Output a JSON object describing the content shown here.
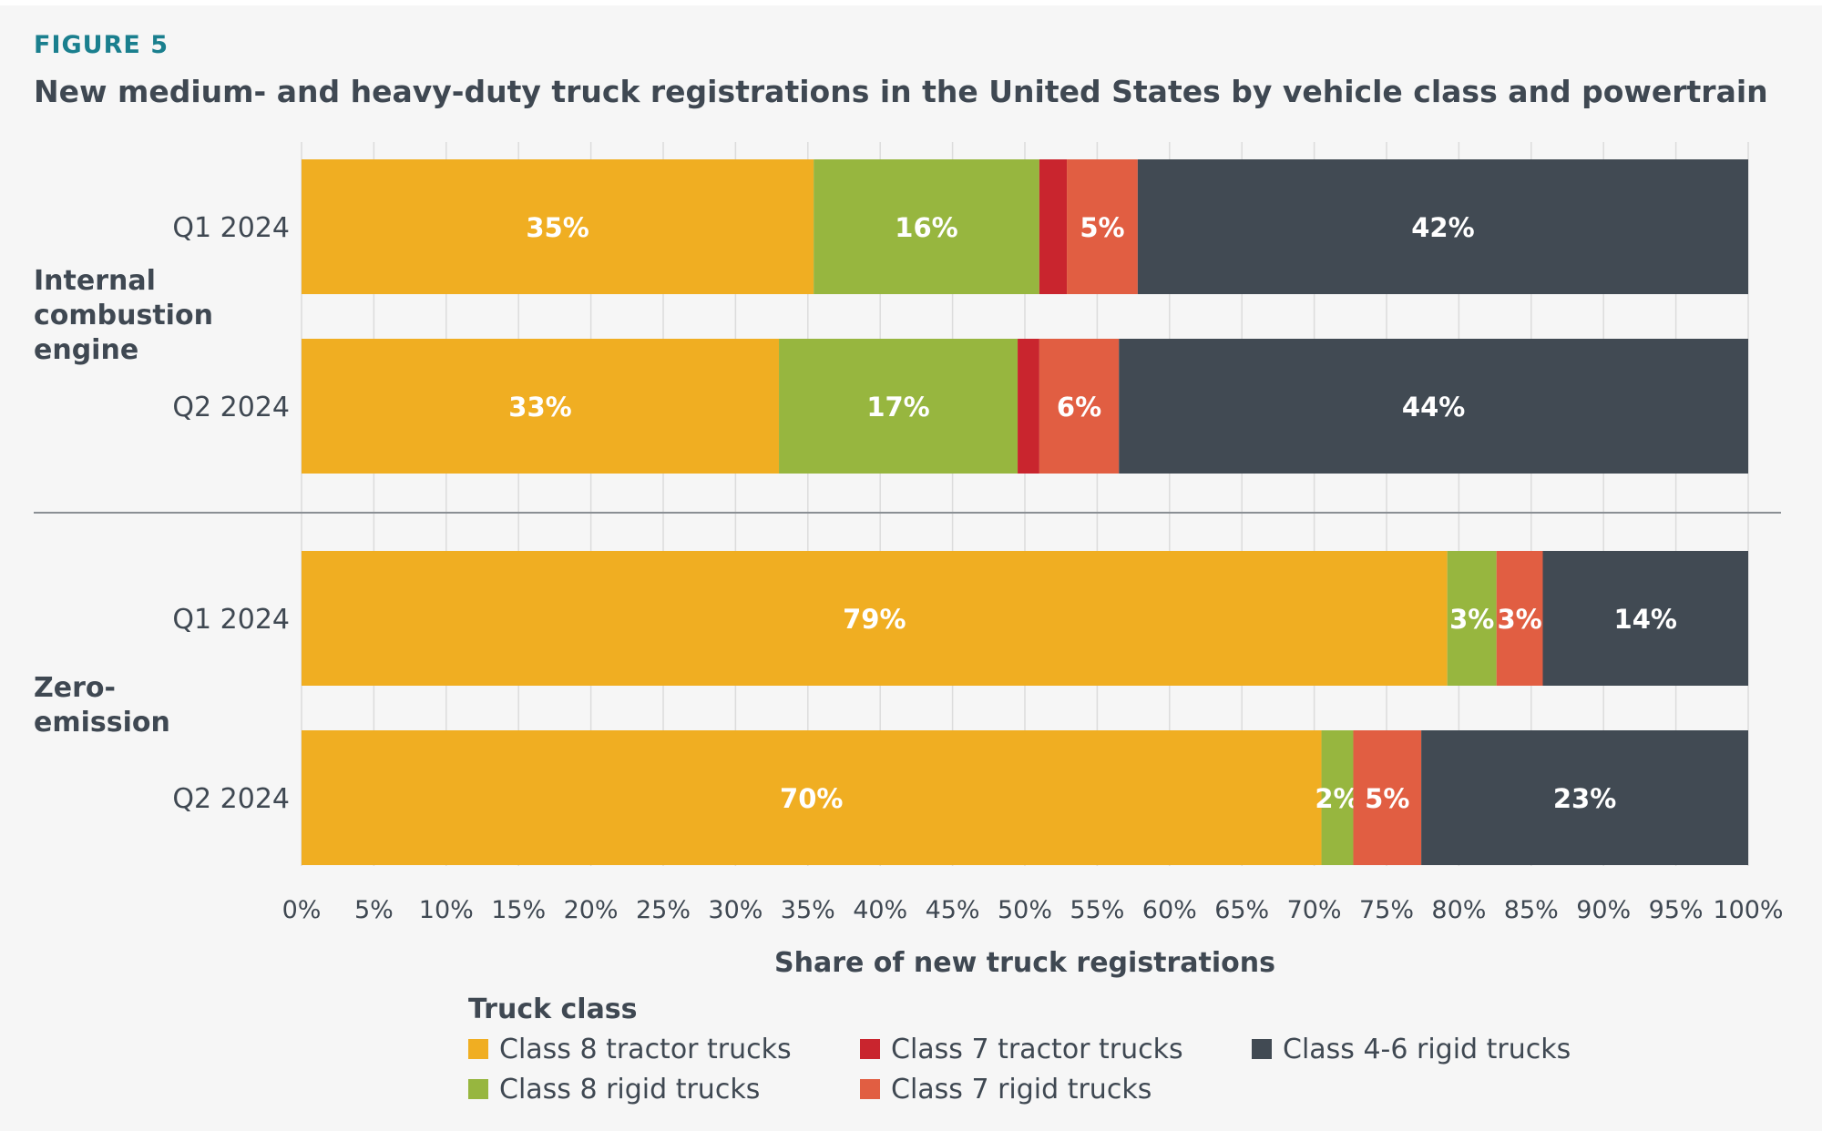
{
  "figure_label": "FIGURE 5",
  "title": "New medium- and heavy-duty truck registrations in the United States by vehicle class and powertrain",
  "chart_data": {
    "type": "bar",
    "orientation": "horizontal",
    "stacked": true,
    "xlabel": "Share of new truck registrations",
    "xlim": [
      0,
      100
    ],
    "x_ticks": [
      "0%",
      "5%",
      "10%",
      "15%",
      "20%",
      "25%",
      "30%",
      "35%",
      "40%",
      "45%",
      "50%",
      "55%",
      "60%",
      "65%",
      "70%",
      "75%",
      "80%",
      "85%",
      "90%",
      "95%",
      "100%"
    ],
    "grid": true,
    "groups": [
      {
        "name": "Internal combustion engine",
        "name_lines": [
          "Internal",
          "combustion",
          "engine"
        ]
      },
      {
        "name": "Zero-emission",
        "name_lines": [
          "Zero-",
          "emission"
        ]
      }
    ],
    "bars": [
      {
        "group": 0,
        "category": "Q1 2024",
        "values": [
          35.4,
          15.6,
          1.9,
          4.9,
          42.2
        ],
        "labels": [
          "35%",
          "16%",
          "",
          "5%",
          "42%"
        ]
      },
      {
        "group": 0,
        "category": "Q2 2024",
        "values": [
          33.0,
          16.5,
          1.5,
          5.5,
          43.5
        ],
        "labels": [
          "33%",
          "17%",
          "",
          "6%",
          "44%"
        ]
      },
      {
        "group": 1,
        "category": "Q1 2024",
        "values": [
          79.2,
          3.4,
          0,
          3.2,
          14.2
        ],
        "labels": [
          "79%",
          "3%",
          "",
          "3%",
          "14%"
        ]
      },
      {
        "group": 1,
        "category": "Q2 2024",
        "values": [
          70.5,
          2.2,
          0,
          4.7,
          22.6
        ],
        "labels": [
          "70%",
          "2%",
          "",
          "5%",
          "23%"
        ]
      }
    ],
    "series": [
      {
        "name": "Class 8 tractor trucks",
        "color": "#f0ae22"
      },
      {
        "name": "Class 8 rigid trucks",
        "color": "#97b63f"
      },
      {
        "name": "Class 7 tractor trucks",
        "color": "#c9252e"
      },
      {
        "name": "Class 7 rigid trucks",
        "color": "#e15e42"
      },
      {
        "name": "Class 4-6 rigid trucks",
        "color": "#414a53"
      }
    ],
    "legend": {
      "title": "Truck class",
      "position": "bottom",
      "order": [
        0,
        2,
        4,
        1,
        3
      ]
    }
  }
}
